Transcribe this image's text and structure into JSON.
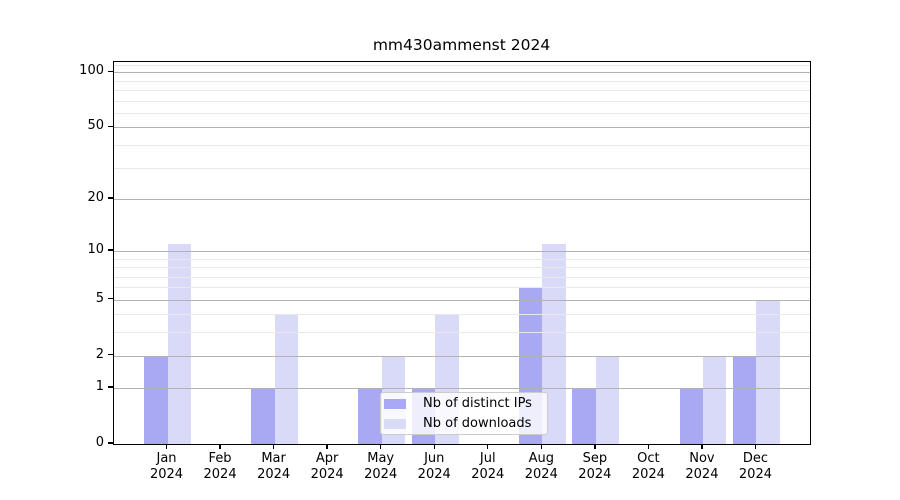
{
  "chart_data": {
    "type": "bar",
    "title": "mm430ammenst 2024",
    "categories": [
      "Jan 2024",
      "Feb 2024",
      "Mar 2024",
      "Apr 2024",
      "May 2024",
      "Jun 2024",
      "Jul 2024",
      "Aug 2024",
      "Sep 2024",
      "Oct 2024",
      "Nov 2024",
      "Dec 2024"
    ],
    "series": [
      {
        "name": "Nb of distinct IPs",
        "color": "#a8a8f3",
        "values": [
          2,
          0,
          1,
          0,
          1,
          1,
          0,
          6,
          1,
          0,
          1,
          2
        ]
      },
      {
        "name": "Nb of downloads",
        "color": "#d9d9f8",
        "values": [
          11,
          0,
          4,
          0,
          2,
          4,
          0,
          11,
          2,
          0,
          2,
          5
        ]
      }
    ],
    "xlabel": "",
    "ylabel": "",
    "yscale": "log1p",
    "ylim": [
      0,
      114
    ],
    "y_major_ticks": [
      0,
      1,
      2,
      5,
      10,
      20,
      50,
      100
    ],
    "y_minor_ticks": [
      3,
      4,
      6,
      7,
      8,
      9,
      30,
      40,
      60,
      70,
      80,
      90,
      110
    ],
    "grid": "both",
    "legend_position": "lower center"
  },
  "colors": {
    "major_grid": "#b2b2b2",
    "minor_grid": "#e9e9e9",
    "spine": "#000000",
    "background": "#ffffff"
  }
}
